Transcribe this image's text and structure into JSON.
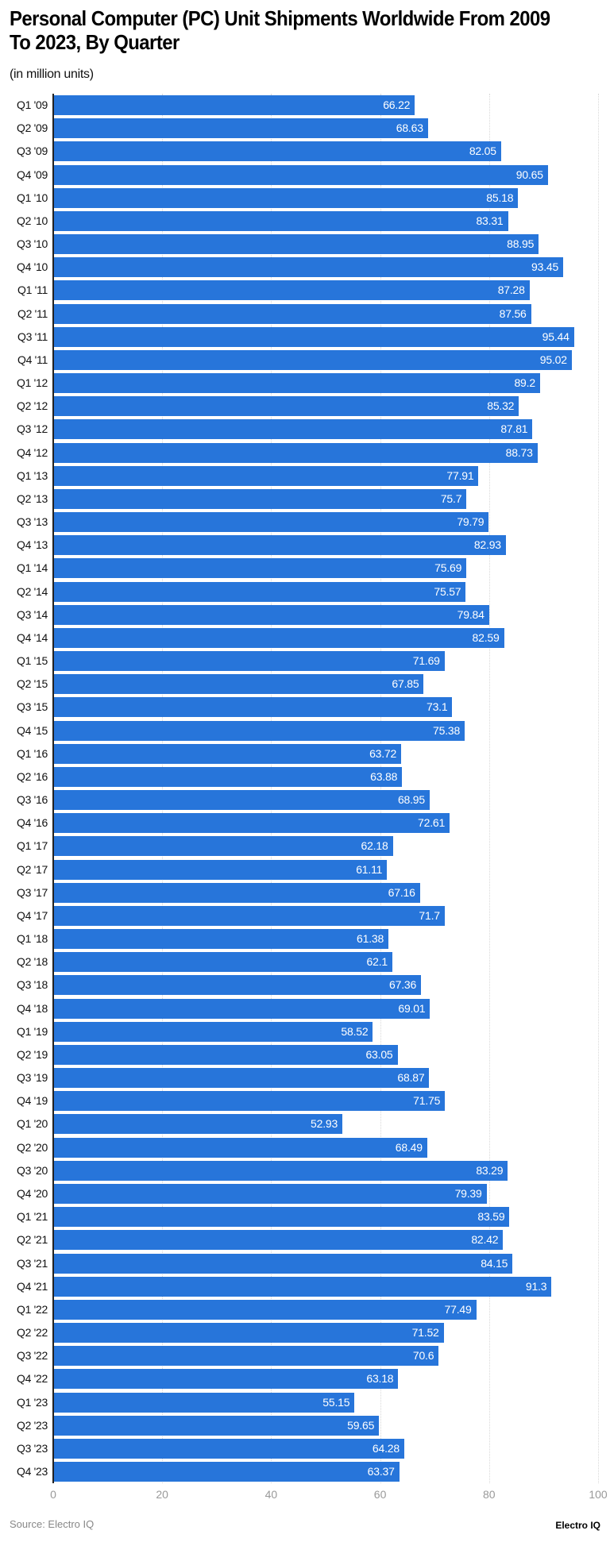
{
  "header": {
    "title": "Personal Computer (PC) Unit Shipments Worldwide From 2009 To 2023, By Quarter",
    "subtitle": "(in million units)"
  },
  "footer": {
    "source": "Source: Electro IQ",
    "brand": "Electro IQ"
  },
  "colors": {
    "bar": "#2775da",
    "axis_tick": "#999999",
    "grid": "#d8d8d8"
  },
  "chart_data": {
    "type": "bar",
    "orientation": "horizontal",
    "title": "Personal Computer (PC) Unit Shipments Worldwide From 2009 To 2023, By Quarter",
    "subtitle": "(in million units)",
    "xlabel": "",
    "ylabel": "",
    "xlim": [
      0,
      100
    ],
    "xticks": [
      "0",
      "20",
      "40",
      "60",
      "80",
      "100"
    ],
    "grid": true,
    "legend": null,
    "categories": [
      "Q1 '09",
      "Q2 '09",
      "Q3 '09",
      "Q4 '09",
      "Q1 '10",
      "Q2 '10",
      "Q3 '10",
      "Q4 '10",
      "Q1 '11",
      "Q2 '11",
      "Q3 '11",
      "Q4 '11",
      "Q1 '12",
      "Q2 '12",
      "Q3 '12",
      "Q4 '12",
      "Q1 '13",
      "Q2 '13",
      "Q3 '13",
      "Q4 '13",
      "Q1 '14",
      "Q2 '14",
      "Q3 '14",
      "Q4 '14",
      "Q1 '15",
      "Q2 '15",
      "Q3 '15",
      "Q4 '15",
      "Q1 '16",
      "Q2 '16",
      "Q3 '16",
      "Q4 '16",
      "Q1 '17",
      "Q2 '17",
      "Q3 '17",
      "Q4 '17",
      "Q1 '18",
      "Q2 '18",
      "Q3 '18",
      "Q4 '18",
      "Q1 '19",
      "Q2 '19",
      "Q3 '19",
      "Q4 '19",
      "Q1 '20",
      "Q2 '20",
      "Q3 '20",
      "Q4 '20",
      "Q1 '21",
      "Q2 '21",
      "Q3 '21",
      "Q4 '21",
      "Q1 '22",
      "Q2 '22",
      "Q3 '22",
      "Q4 '22",
      "Q1 '23",
      "Q2 '23",
      "Q3 '23",
      "Q4 '23"
    ],
    "values": [
      66.22,
      68.63,
      82.05,
      90.65,
      85.18,
      83.31,
      88.95,
      93.45,
      87.28,
      87.56,
      95.44,
      95.02,
      89.2,
      85.32,
      87.81,
      88.73,
      77.91,
      75.7,
      79.79,
      82.93,
      75.69,
      75.57,
      79.84,
      82.59,
      71.69,
      67.85,
      73.1,
      75.38,
      63.72,
      63.88,
      68.95,
      72.61,
      62.18,
      61.11,
      67.16,
      71.7,
      61.38,
      62.1,
      67.36,
      69.01,
      58.52,
      63.05,
      68.87,
      71.75,
      52.93,
      68.49,
      83.29,
      79.39,
      83.59,
      82.42,
      84.15,
      91.3,
      77.49,
      71.52,
      70.6,
      63.18,
      55.15,
      59.65,
      64.28,
      63.37
    ]
  }
}
